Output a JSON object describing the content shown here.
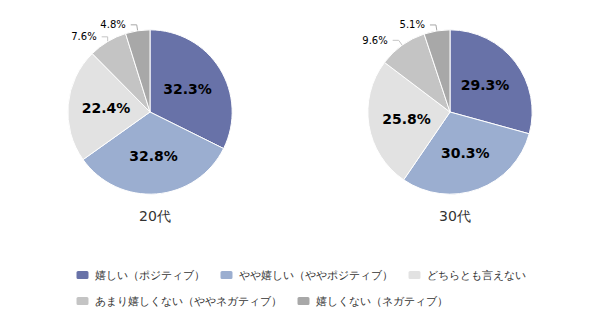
{
  "chart_data": [
    {
      "type": "pie",
      "title": "20代",
      "categories": [
        "嬉しい（ポジティブ）",
        "やや嬉しい（ややポジティブ）",
        "どちらとも言えない",
        "あまり嬉しくない（ややネガティブ）",
        "嬉しくない（ネガティブ）"
      ],
      "values": [
        32.3,
        32.8,
        22.4,
        7.6,
        4.8
      ],
      "value_labels": [
        "32.3%",
        "32.8%",
        "22.4%",
        "7.6%",
        "4.8%"
      ],
      "colors": [
        "#6872a8",
        "#9baed0",
        "#e2e2e2",
        "#c4c4c4",
        "#a8a8a8"
      ],
      "data_labels": true,
      "legend": "bottom"
    },
    {
      "type": "pie",
      "title": "30代",
      "categories": [
        "嬉しい（ポジティブ）",
        "やや嬉しい（ややポジティブ）",
        "どちらとも言えない",
        "あまり嬉しくない（ややネガティブ）",
        "嬉しくない（ネガティブ）"
      ],
      "values": [
        29.3,
        30.3,
        25.8,
        9.6,
        5.1
      ],
      "value_labels": [
        "29.3%",
        "30.3%",
        "25.8%",
        "9.6%",
        "5.1%"
      ],
      "colors": [
        "#6872a8",
        "#9baed0",
        "#e2e2e2",
        "#c4c4c4",
        "#a8a8a8"
      ],
      "data_labels": true,
      "legend": "bottom"
    }
  ]
}
